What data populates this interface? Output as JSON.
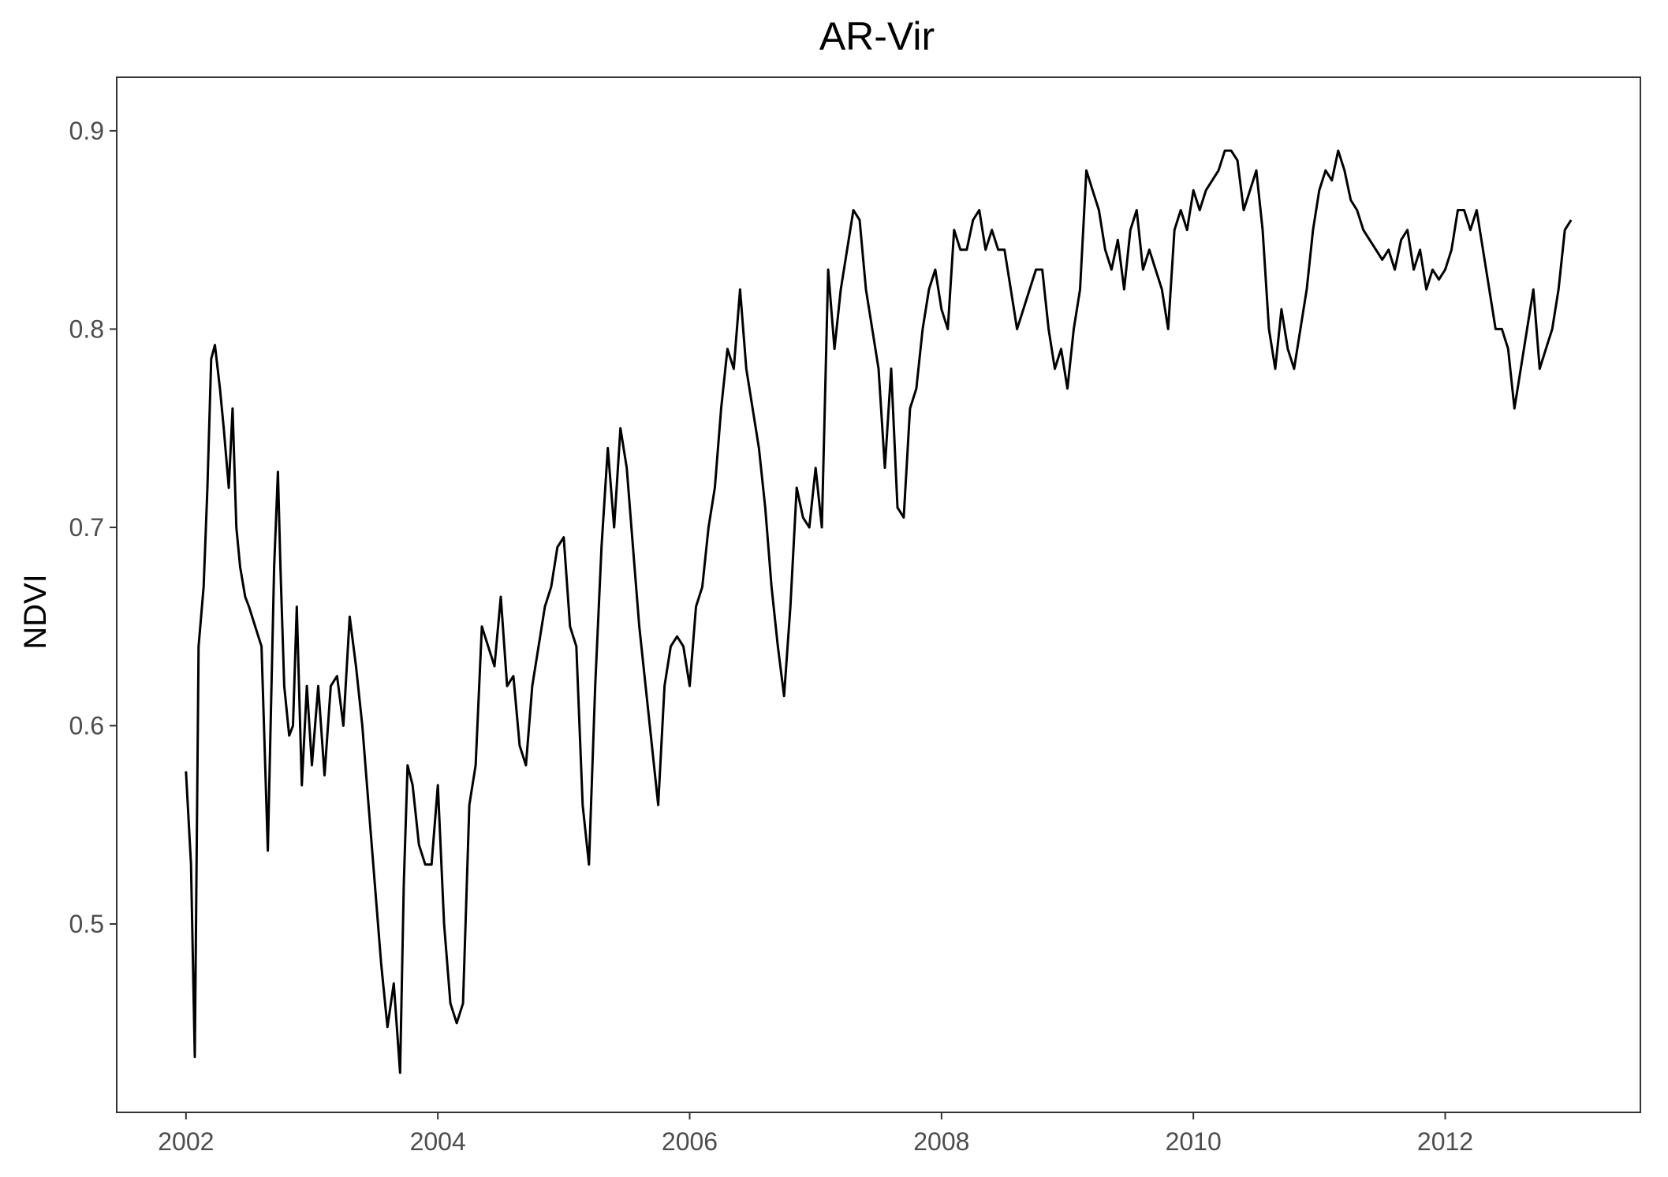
{
  "chart_data": {
    "type": "line",
    "title": "AR-Vir",
    "xlabel": "",
    "ylabel": "NDVI",
    "x_ticks": [
      "2002",
      "2004",
      "2006",
      "2008",
      "2010",
      "2012"
    ],
    "y_ticks": [
      "0.5",
      "0.6",
      "0.7",
      "0.8",
      "0.9"
    ],
    "xlim": [
      2001.45,
      2013.55
    ],
    "ylim": [
      0.405,
      0.927
    ],
    "grid": false,
    "legend": "none",
    "series": [
      {
        "color": "#000000",
        "x": [
          2002.0,
          2002.04,
          2002.07,
          2002.1,
          2002.14,
          2002.17,
          2002.2,
          2002.23,
          2002.27,
          2002.3,
          2002.34,
          2002.37,
          2002.4,
          2002.43,
          2002.47,
          2002.5,
          2002.55,
          2002.6,
          2002.65,
          2002.7,
          2002.73,
          2002.75,
          2002.78,
          2002.82,
          2002.85,
          2002.88,
          2002.92,
          2002.96,
          2003.0,
          2003.05,
          2003.1,
          2003.15,
          2003.2,
          2003.25,
          2003.3,
          2003.35,
          2003.4,
          2003.45,
          2003.5,
          2003.55,
          2003.6,
          2003.65,
          2003.7,
          2003.73,
          2003.76,
          2003.8,
          2003.85,
          2003.9,
          2003.95,
          2004.0,
          2004.05,
          2004.1,
          2004.15,
          2004.2,
          2004.25,
          2004.3,
          2004.35,
          2004.4,
          2004.45,
          2004.5,
          2004.55,
          2004.6,
          2004.65,
          2004.7,
          2004.75,
          2004.8,
          2004.85,
          2004.9,
          2004.95,
          2005.0,
          2005.05,
          2005.1,
          2005.15,
          2005.2,
          2005.25,
          2005.3,
          2005.35,
          2005.4,
          2005.45,
          2005.5,
          2005.55,
          2005.6,
          2005.65,
          2005.7,
          2005.75,
          2005.8,
          2005.85,
          2005.9,
          2005.95,
          2006.0,
          2006.05,
          2006.1,
          2006.15,
          2006.2,
          2006.25,
          2006.3,
          2006.35,
          2006.4,
          2006.45,
          2006.5,
          2006.55,
          2006.6,
          2006.65,
          2006.7,
          2006.75,
          2006.8,
          2006.85,
          2006.9,
          2006.95,
          2007.0,
          2007.05,
          2007.1,
          2007.15,
          2007.2,
          2007.25,
          2007.3,
          2007.35,
          2007.4,
          2007.45,
          2007.5,
          2007.55,
          2007.6,
          2007.65,
          2007.7,
          2007.75,
          2007.8,
          2007.85,
          2007.9,
          2007.95,
          2008.0,
          2008.05,
          2008.1,
          2008.15,
          2008.2,
          2008.25,
          2008.3,
          2008.35,
          2008.4,
          2008.45,
          2008.5,
          2008.55,
          2008.6,
          2008.65,
          2008.7,
          2008.75,
          2008.8,
          2008.85,
          2008.9,
          2008.95,
          2009.0,
          2009.05,
          2009.1,
          2009.15,
          2009.2,
          2009.25,
          2009.3,
          2009.35,
          2009.4,
          2009.45,
          2009.5,
          2009.55,
          2009.6,
          2009.65,
          2009.7,
          2009.75,
          2009.8,
          2009.85,
          2009.9,
          2009.95,
          2010.0,
          2010.05,
          2010.1,
          2010.15,
          2010.2,
          2010.25,
          2010.3,
          2010.35,
          2010.4,
          2010.45,
          2010.5,
          2010.55,
          2010.6,
          2010.65,
          2010.7,
          2010.75,
          2010.8,
          2010.85,
          2010.9,
          2010.95,
          2011.0,
          2011.05,
          2011.1,
          2011.15,
          2011.2,
          2011.25,
          2011.3,
          2011.35,
          2011.4,
          2011.45,
          2011.5,
          2011.55,
          2011.6,
          2011.65,
          2011.7,
          2011.75,
          2011.8,
          2011.85,
          2011.9,
          2011.95,
          2012.0,
          2012.05,
          2012.1,
          2012.15,
          2012.2,
          2012.25,
          2012.3,
          2012.35,
          2012.4,
          2012.45,
          2012.5,
          2012.55,
          2012.6,
          2012.65,
          2012.7,
          2012.75,
          2012.8,
          2012.85,
          2012.9,
          2012.95,
          2013.0
        ],
        "y": [
          0.577,
          0.53,
          0.433,
          0.64,
          0.67,
          0.72,
          0.785,
          0.792,
          0.77,
          0.75,
          0.72,
          0.76,
          0.7,
          0.68,
          0.665,
          0.66,
          0.65,
          0.64,
          0.537,
          0.68,
          0.728,
          0.68,
          0.62,
          0.595,
          0.6,
          0.66,
          0.57,
          0.62,
          0.58,
          0.62,
          0.575,
          0.62,
          0.625,
          0.6,
          0.655,
          0.63,
          0.6,
          0.56,
          0.52,
          0.48,
          0.448,
          0.47,
          0.425,
          0.52,
          0.58,
          0.57,
          0.54,
          0.53,
          0.53,
          0.57,
          0.5,
          0.46,
          0.45,
          0.46,
          0.56,
          0.58,
          0.65,
          0.64,
          0.63,
          0.665,
          0.62,
          0.625,
          0.59,
          0.58,
          0.62,
          0.64,
          0.66,
          0.67,
          0.69,
          0.695,
          0.65,
          0.64,
          0.56,
          0.53,
          0.62,
          0.69,
          0.74,
          0.7,
          0.75,
          0.73,
          0.69,
          0.65,
          0.62,
          0.59,
          0.56,
          0.62,
          0.64,
          0.645,
          0.64,
          0.62,
          0.66,
          0.67,
          0.7,
          0.72,
          0.76,
          0.79,
          0.78,
          0.82,
          0.78,
          0.76,
          0.74,
          0.71,
          0.67,
          0.64,
          0.615,
          0.66,
          0.72,
          0.705,
          0.7,
          0.73,
          0.7,
          0.83,
          0.79,
          0.82,
          0.84,
          0.86,
          0.855,
          0.82,
          0.8,
          0.78,
          0.73,
          0.78,
          0.71,
          0.705,
          0.76,
          0.77,
          0.8,
          0.82,
          0.83,
          0.81,
          0.8,
          0.85,
          0.84,
          0.84,
          0.855,
          0.86,
          0.84,
          0.85,
          0.84,
          0.84,
          0.82,
          0.8,
          0.81,
          0.82,
          0.83,
          0.83,
          0.8,
          0.78,
          0.79,
          0.77,
          0.8,
          0.82,
          0.88,
          0.87,
          0.86,
          0.84,
          0.83,
          0.845,
          0.82,
          0.85,
          0.86,
          0.83,
          0.84,
          0.83,
          0.82,
          0.8,
          0.85,
          0.86,
          0.85,
          0.87,
          0.86,
          0.87,
          0.875,
          0.88,
          0.89,
          0.89,
          0.885,
          0.86,
          0.87,
          0.88,
          0.85,
          0.8,
          0.78,
          0.81,
          0.79,
          0.78,
          0.8,
          0.82,
          0.85,
          0.87,
          0.88,
          0.875,
          0.89,
          0.88,
          0.865,
          0.86,
          0.85,
          0.845,
          0.84,
          0.835,
          0.84,
          0.83,
          0.845,
          0.85,
          0.83,
          0.84,
          0.82,
          0.83,
          0.825,
          0.83,
          0.84,
          0.86,
          0.86,
          0.85,
          0.86,
          0.84,
          0.82,
          0.8,
          0.8,
          0.79,
          0.76,
          0.78,
          0.8,
          0.82,
          0.78,
          0.79,
          0.8,
          0.82,
          0.85,
          0.855
        ]
      }
    ]
  }
}
